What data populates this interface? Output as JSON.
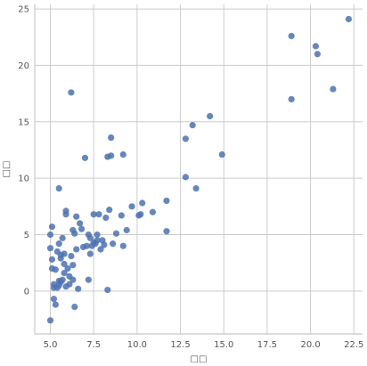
{
  "chart_data": {
    "type": "scatter",
    "xlabel": "□□",
    "ylabel": "□□",
    "xlim": [
      4.1,
      23.0
    ],
    "ylim": [
      -3.8,
      25.4
    ],
    "xticks": [
      5.0,
      7.5,
      10.0,
      12.5,
      15.0,
      17.5,
      20.0,
      22.5
    ],
    "xtick_labels": [
      "5.0",
      "7.5",
      "10.0",
      "12.5",
      "15.0",
      "17.5",
      "20.0",
      "22.5"
    ],
    "yticks": [
      0,
      5,
      10,
      15,
      20,
      25
    ],
    "ytick_labels": [
      "0",
      "5",
      "10",
      "15",
      "20",
      "25"
    ],
    "grid": true,
    "point_color": "#4c72b0",
    "points": [
      [
        5.0,
        -2.6
      ],
      [
        5.1,
        5.7
      ],
      [
        5.0,
        5.0
      ],
      [
        5.0,
        3.8
      ],
      [
        5.1,
        2.8
      ],
      [
        5.1,
        2.0
      ],
      [
        5.2,
        0.6
      ],
      [
        5.2,
        0.3
      ],
      [
        5.2,
        -0.7
      ],
      [
        5.3,
        -1.2
      ],
      [
        5.3,
        1.9
      ],
      [
        5.4,
        3.5
      ],
      [
        5.4,
        0.3
      ],
      [
        5.5,
        0.9
      ],
      [
        5.5,
        0.5
      ],
      [
        5.5,
        9.1
      ],
      [
        5.5,
        4.2
      ],
      [
        5.6,
        3.2
      ],
      [
        5.6,
        2.9
      ],
      [
        5.6,
        0.8
      ],
      [
        5.7,
        1.0
      ],
      [
        5.7,
        4.7
      ],
      [
        5.8,
        2.4
      ],
      [
        5.8,
        1.6
      ],
      [
        5.8,
        3.3
      ],
      [
        5.9,
        0.4
      ],
      [
        5.9,
        7.1
      ],
      [
        5.9,
        6.8
      ],
      [
        6.0,
        2.0
      ],
      [
        6.1,
        1.3
      ],
      [
        6.1,
        0.6
      ],
      [
        6.2,
        17.6
      ],
      [
        6.2,
        3.1
      ],
      [
        6.3,
        5.4
      ],
      [
        6.3,
        2.3
      ],
      [
        6.3,
        1.0
      ],
      [
        6.4,
        -1.4
      ],
      [
        6.4,
        5.1
      ],
      [
        6.5,
        3.7
      ],
      [
        6.5,
        6.6
      ],
      [
        6.6,
        0.2
      ],
      [
        6.7,
        6.0
      ],
      [
        6.8,
        5.5
      ],
      [
        6.9,
        3.9
      ],
      [
        7.0,
        11.8
      ],
      [
        7.1,
        4.0
      ],
      [
        7.2,
        1.0
      ],
      [
        7.2,
        5.0
      ],
      [
        7.3,
        4.7
      ],
      [
        7.3,
        3.3
      ],
      [
        7.4,
        4.0
      ],
      [
        7.5,
        6.8
      ],
      [
        7.5,
        4.3
      ],
      [
        7.6,
        4.2
      ],
      [
        7.7,
        5.0
      ],
      [
        7.7,
        4.5
      ],
      [
        7.8,
        6.8
      ],
      [
        7.9,
        3.7
      ],
      [
        8.0,
        4.5
      ],
      [
        8.1,
        4.1
      ],
      [
        8.2,
        6.5
      ],
      [
        8.3,
        0.1
      ],
      [
        8.3,
        11.9
      ],
      [
        8.4,
        7.2
      ],
      [
        8.5,
        13.6
      ],
      [
        8.5,
        12.0
      ],
      [
        8.6,
        4.2
      ],
      [
        8.8,
        5.1
      ],
      [
        9.1,
        6.7
      ],
      [
        9.2,
        12.1
      ],
      [
        9.2,
        4.0
      ],
      [
        9.4,
        5.4
      ],
      [
        9.7,
        7.5
      ],
      [
        10.1,
        6.7
      ],
      [
        10.2,
        6.8
      ],
      [
        10.3,
        7.8
      ],
      [
        10.9,
        7.0
      ],
      [
        11.7,
        8.0
      ],
      [
        11.7,
        5.3
      ],
      [
        12.8,
        13.5
      ],
      [
        12.8,
        10.1
      ],
      [
        13.2,
        14.7
      ],
      [
        13.4,
        9.1
      ],
      [
        14.2,
        15.5
      ],
      [
        14.9,
        12.1
      ],
      [
        18.9,
        22.6
      ],
      [
        18.9,
        17.0
      ],
      [
        20.3,
        21.7
      ],
      [
        20.4,
        21.0
      ],
      [
        21.3,
        17.9
      ],
      [
        22.2,
        24.1
      ]
    ]
  }
}
